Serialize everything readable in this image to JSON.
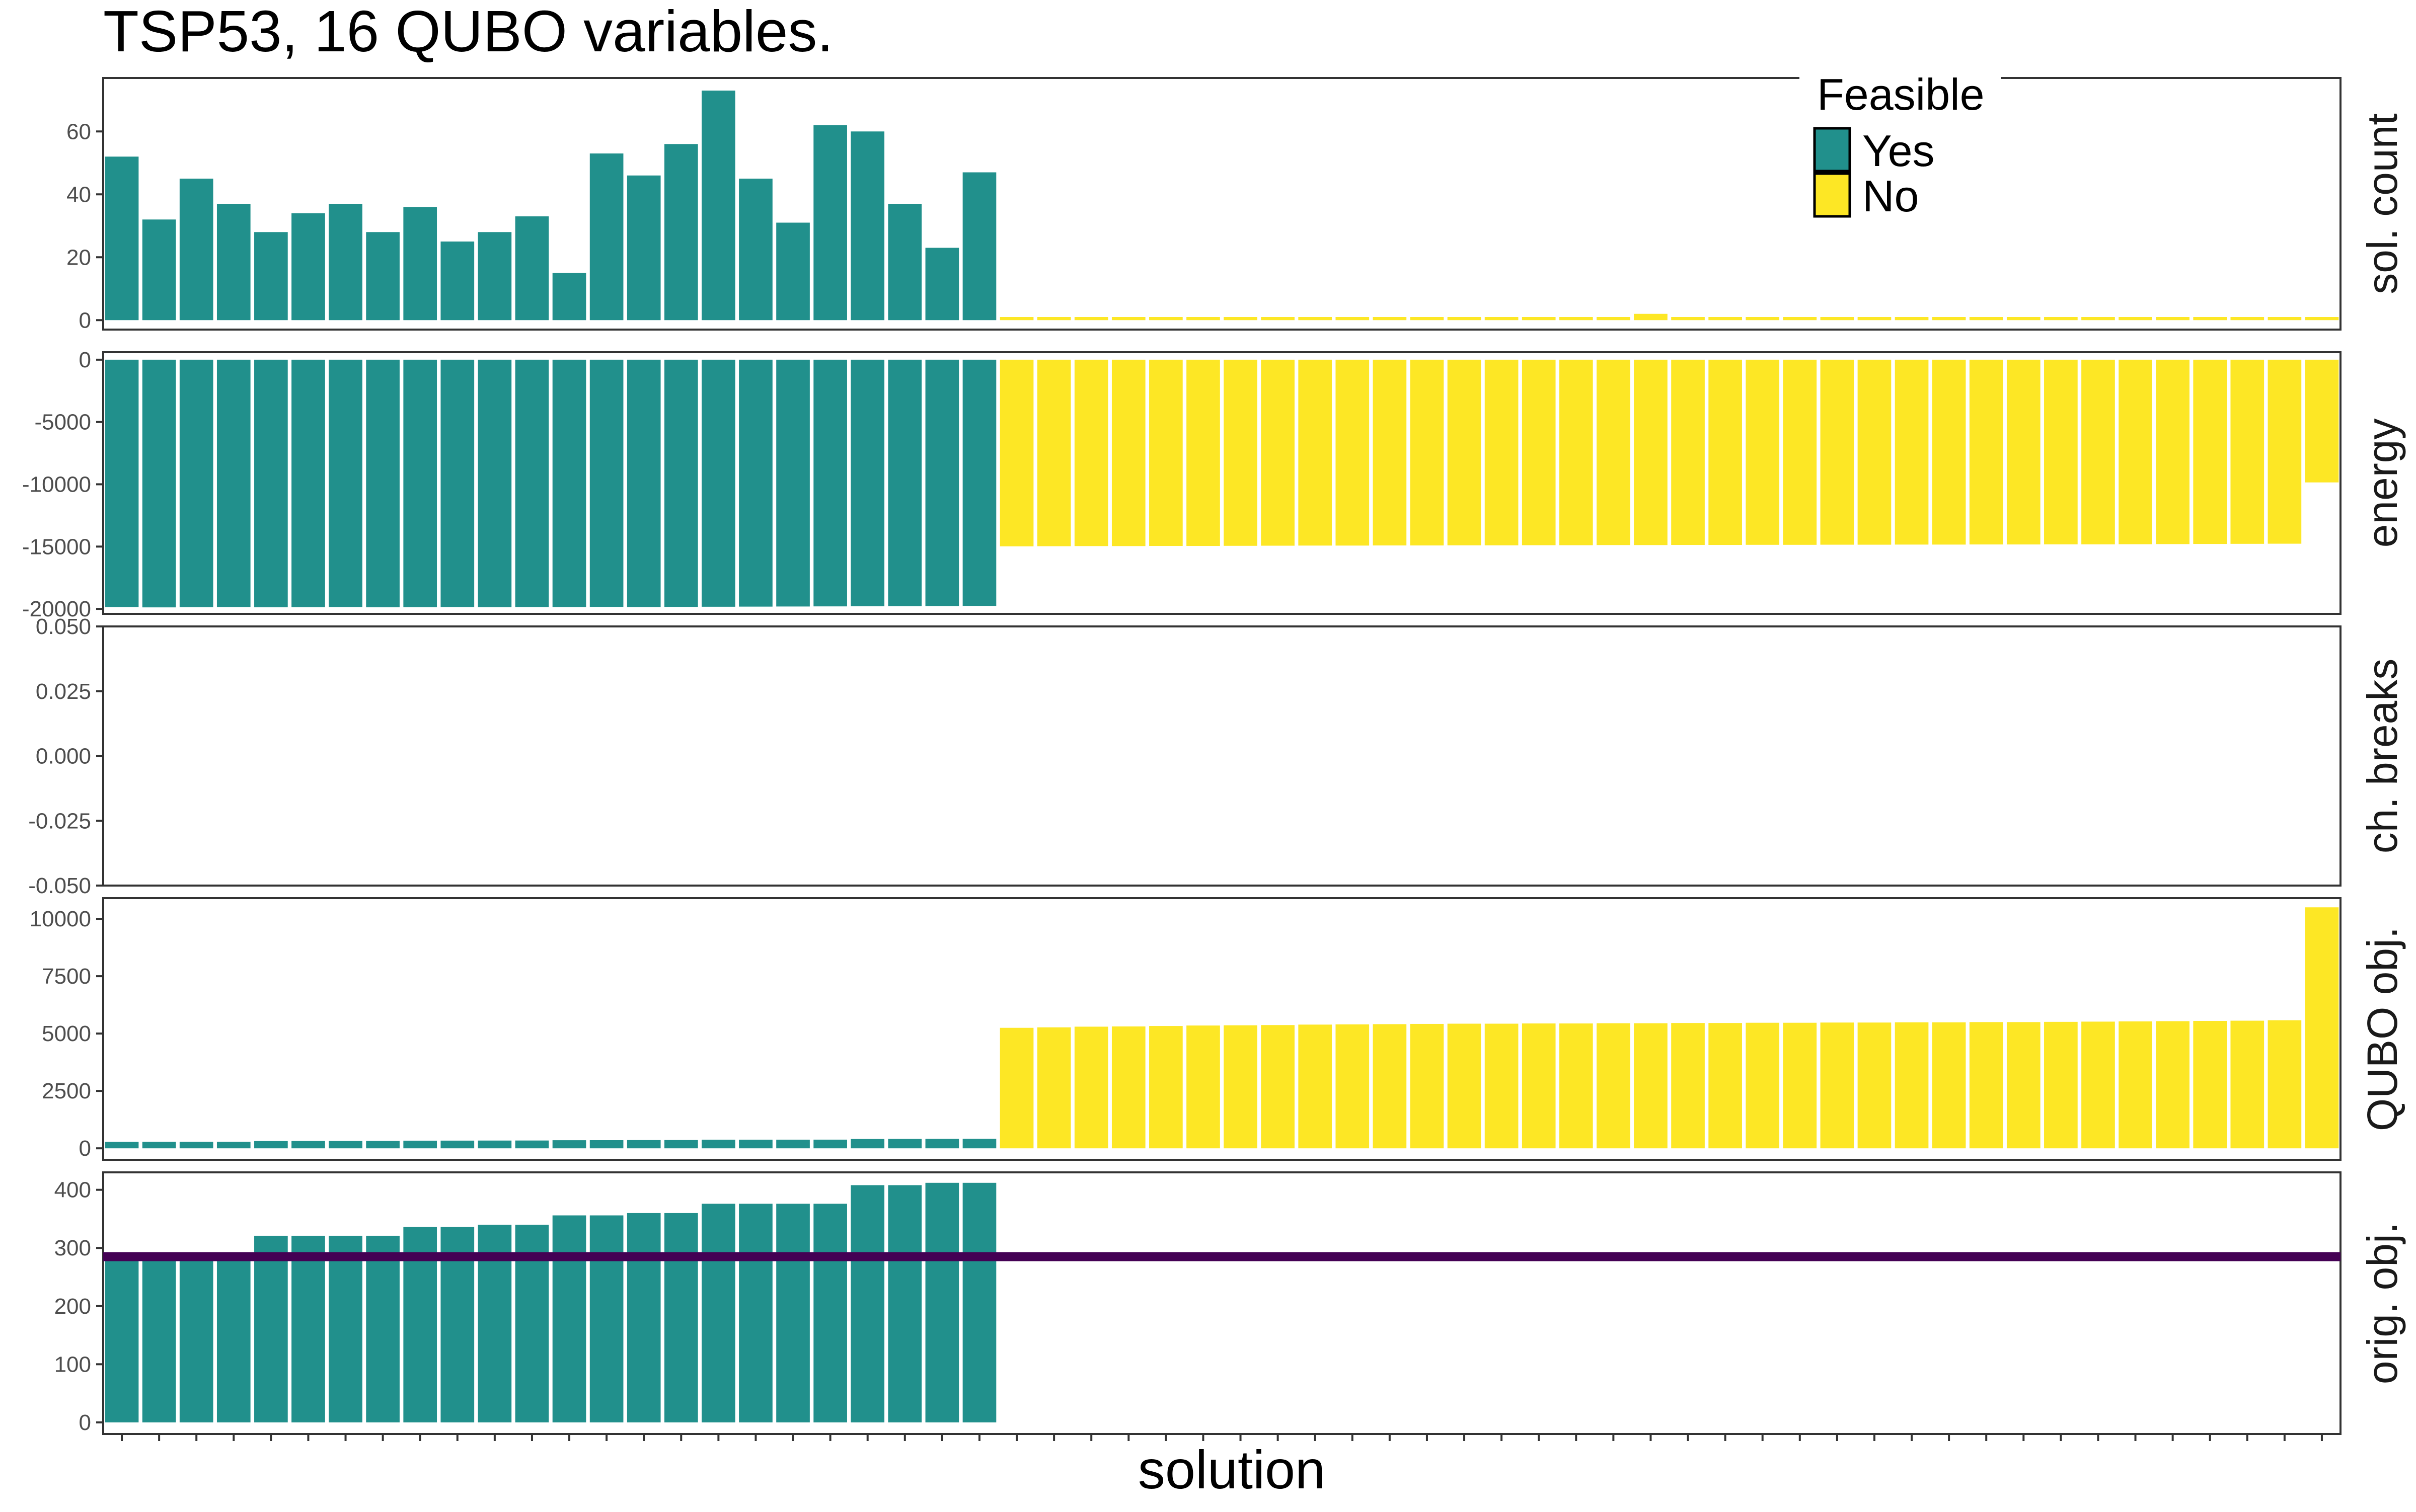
{
  "chart_data": {
    "type": "bar",
    "title": "TSP53, 16 QUBO variables.",
    "xlabel": "solution",
    "legend": {
      "title": "Feasible",
      "placement": "top-right",
      "items": [
        {
          "label": "Yes",
          "color": "#21908C"
        },
        {
          "label": "No",
          "color": "#FDE725"
        }
      ]
    },
    "colors": {
      "yes": "#21908C",
      "no": "#FDE725",
      "hline": "#440154"
    },
    "n_solutions": 60,
    "feasible_count": 24,
    "panels": [
      {
        "strip": "sol. count",
        "ylim": [
          -3,
          77
        ],
        "ticks": [
          0,
          20,
          40,
          60
        ],
        "tick_labels": [
          "0",
          "20",
          "40",
          "60"
        ],
        "values": [
          52,
          32,
          45,
          37,
          28,
          34,
          37,
          28,
          36,
          25,
          28,
          33,
          15,
          53,
          46,
          56,
          73,
          45,
          31,
          62,
          60,
          37,
          23,
          47,
          1,
          1,
          1,
          1,
          1,
          1,
          1,
          1,
          1,
          1,
          1,
          1,
          1,
          1,
          1,
          1,
          1,
          2,
          1,
          1,
          1,
          1,
          1,
          1,
          1,
          1,
          1,
          1,
          1,
          1,
          1,
          1,
          1,
          1,
          1,
          1
        ]
      },
      {
        "strip": "energy",
        "ylim": [
          -20400,
          600
        ],
        "ticks": [
          0,
          -5000,
          -10000,
          -15000,
          -20000
        ],
        "tick_labels": [
          "0",
          "-5000",
          "-10000",
          "-15000",
          "-20000"
        ],
        "values": [
          -19850,
          -19880,
          -19860,
          -19850,
          -19870,
          -19860,
          -19850,
          -19870,
          -19860,
          -19850,
          -19860,
          -19850,
          -19850,
          -19840,
          -19850,
          -19840,
          -19830,
          -19820,
          -19810,
          -19800,
          -19790,
          -19780,
          -19770,
          -19760,
          -14980,
          -14970,
          -14960,
          -14960,
          -14950,
          -14950,
          -14940,
          -14930,
          -14920,
          -14920,
          -14910,
          -14910,
          -14900,
          -14900,
          -14890,
          -14890,
          -14880,
          -14880,
          -14870,
          -14870,
          -14860,
          -14860,
          -14850,
          -14850,
          -14840,
          -14840,
          -14830,
          -14830,
          -14820,
          -14820,
          -14810,
          -14800,
          -14790,
          -14780,
          -14770,
          -9850
        ]
      },
      {
        "strip": "ch. breaks",
        "ylim": [
          -0.05,
          0.05
        ],
        "ticks": [
          0.05,
          0.025,
          0,
          -0.025,
          -0.05
        ],
        "tick_labels": [
          "0.050",
          "0.025",
          "0.000",
          "-0.025",
          "-0.050"
        ],
        "values": []
      },
      {
        "strip": "QUBO obj.",
        "ylim": [
          -500,
          10900
        ],
        "ticks": [
          0,
          2500,
          5000,
          7500,
          10000
        ],
        "tick_labels": [
          "0",
          "2500",
          "5000",
          "7500",
          "10000"
        ],
        "values": [
          280,
          282,
          282,
          282,
          315,
          318,
          318,
          320,
          333,
          335,
          338,
          340,
          353,
          355,
          358,
          360,
          375,
          376,
          377,
          378,
          405,
          408,
          410,
          412,
          5250,
          5270,
          5300,
          5310,
          5330,
          5350,
          5360,
          5370,
          5390,
          5400,
          5410,
          5420,
          5430,
          5430,
          5440,
          5440,
          5450,
          5450,
          5460,
          5460,
          5470,
          5470,
          5480,
          5480,
          5490,
          5490,
          5500,
          5500,
          5510,
          5520,
          5530,
          5540,
          5550,
          5560,
          5580,
          10500
        ]
      },
      {
        "strip": "orig. obj.",
        "ylim": [
          -20,
          430
        ],
        "ticks": [
          0,
          100,
          200,
          300,
          400
        ],
        "tick_labels": [
          "0",
          "100",
          "200",
          "300",
          "400"
        ],
        "hline": 285,
        "values": [
          285,
          285,
          285,
          285,
          321,
          321,
          321,
          321,
          336,
          336,
          340,
          340,
          356,
          356,
          360,
          360,
          376,
          376,
          376,
          376,
          408,
          408,
          412,
          412
        ]
      }
    ]
  }
}
